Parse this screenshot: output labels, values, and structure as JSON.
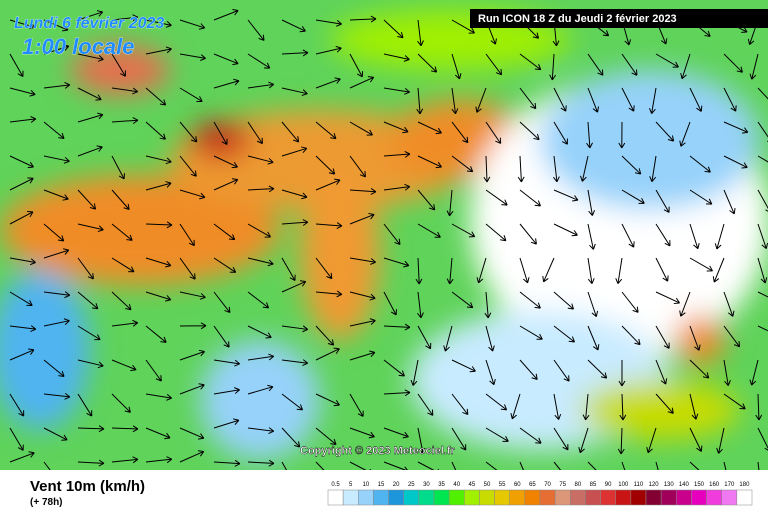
{
  "header": {
    "date": "Lundi 6 février 2023",
    "time": "1:00 locale",
    "run": "Run ICON 18 Z du Jeudi 2 février 2023"
  },
  "copyright": "Copyright © 2023 Meteociel.fr",
  "footer": {
    "title": "Vent 10m (km/h)",
    "lead": "(+ 78h)"
  },
  "legend": {
    "labels": [
      "0.5",
      "5",
      "10",
      "15",
      "20",
      "25",
      "30",
      "35",
      "40",
      "45",
      "50",
      "55",
      "60",
      "65",
      "70",
      "75",
      "80",
      "85",
      "90",
      "100",
      "110",
      "120",
      "130",
      "140",
      "150",
      "160",
      "170",
      "180"
    ],
    "colors": [
      "#ffffff",
      "#c8ebff",
      "#96d2fa",
      "#50b4f0",
      "#1e96dc",
      "#00c8c8",
      "#00dc8c",
      "#00e650",
      "#50f000",
      "#a0f000",
      "#c8dc00",
      "#e6c800",
      "#f0a000",
      "#f08200",
      "#e66e32",
      "#dc9678",
      "#c86e64",
      "#c85050",
      "#dc3232",
      "#c81414",
      "#a00000",
      "#820032",
      "#a0005a",
      "#c8008c",
      "#e600be",
      "#f03cdc",
      "#f078f0",
      "#ffffff"
    ]
  }
}
